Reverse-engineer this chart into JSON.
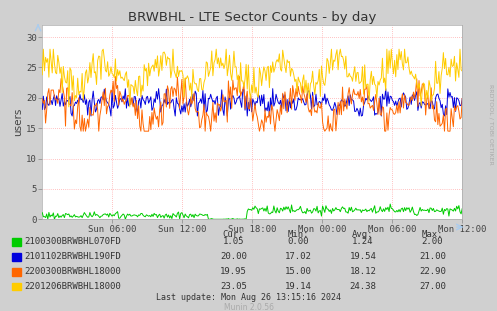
{
  "title": "BRWBHL - LTE Sector Counts - by day",
  "ylabel": "users",
  "background_color": "#d0d0d0",
  "plot_background": "#ffffff",
  "grid_color": "#ff8888",
  "x_ticks_labels": [
    "Sun 06:00",
    "Sun 12:00",
    "Sun 18:00",
    "Mon 00:00",
    "Mon 06:00",
    "Mon 12:00"
  ],
  "y_ticks": [
    0,
    5,
    10,
    15,
    20,
    25,
    30
  ],
  "ylim": [
    0,
    32
  ],
  "series": [
    {
      "label": "2100300BRWBHL070FD",
      "color": "#00cc00",
      "avg": 1.24,
      "min": 0.0,
      "max": 2.0,
      "cur": 1.05
    },
    {
      "label": "2101102BRWBHL190FD",
      "color": "#0000dd",
      "avg": 19.54,
      "min": 17.02,
      "max": 21.0,
      "cur": 20.0
    },
    {
      "label": "2200300BRWBHL18000",
      "color": "#ff6600",
      "avg": 18.12,
      "min": 15.0,
      "max": 22.9,
      "cur": 19.95
    },
    {
      "label": "2201206BRWBHL18000",
      "color": "#ffcc00",
      "avg": 24.38,
      "min": 19.14,
      "max": 27.0,
      "cur": 23.05
    }
  ],
  "table_headers": [
    "Cur:",
    "Min:",
    "Avg:",
    "Max:"
  ],
  "watermark": "Munin 2.0.56",
  "last_update": "Last update: Mon Aug 26 13:15:16 2024",
  "rrdtool_text": "RRDTOOL / TOBI OETIKER"
}
